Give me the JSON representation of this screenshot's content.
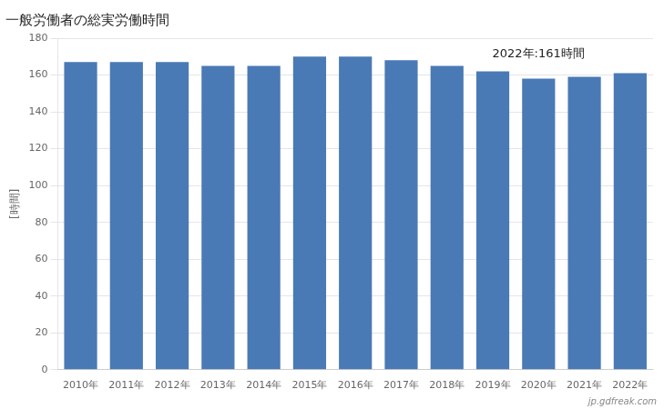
{
  "chart_data": {
    "type": "bar",
    "title": "一般労働者の総実労働時間",
    "ylabel": "[時間]",
    "annotation": "2022年:161時間",
    "watermark": "jp.gdfreak.com",
    "categories": [
      "2010年",
      "2011年",
      "2012年",
      "2013年",
      "2014年",
      "2015年",
      "2016年",
      "2017年",
      "2018年",
      "2019年",
      "2020年",
      "2021年",
      "2022年"
    ],
    "values": [
      167,
      167,
      167,
      165,
      165,
      170,
      170,
      168,
      165,
      162,
      158,
      159,
      161
    ],
    "color": "#4a7ab5",
    "ylim": [
      0,
      180
    ],
    "yticks": [
      0,
      20,
      40,
      60,
      80,
      100,
      120,
      140,
      160,
      180
    ],
    "grid": true
  }
}
